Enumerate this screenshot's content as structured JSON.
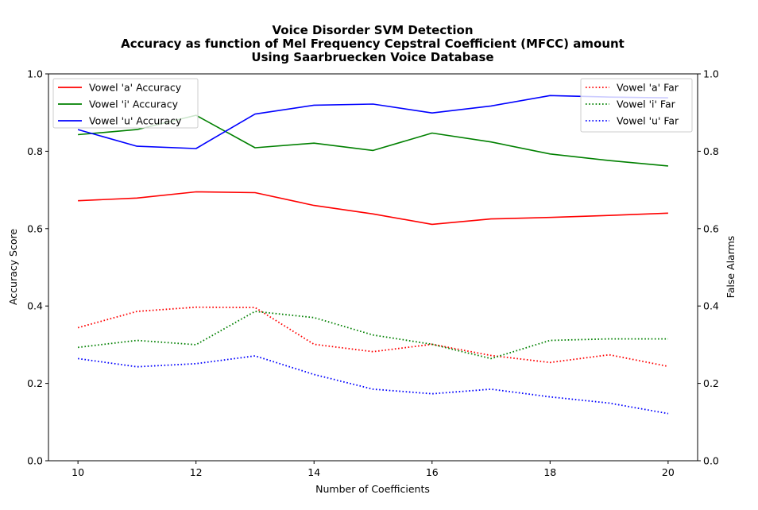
{
  "chart_data": {
    "type": "line",
    "title_lines": [
      "Voice Disorder SVM Detection",
      "Accuracy as function of Mel Frequency Cepstral Coefficient (MFCC) amount",
      "Using Saarbruecken Voice Database"
    ],
    "xlabel": "Number of Coefficients",
    "ylabel_left": "Accuracy Score",
    "ylabel_right": "False Alarms",
    "x": [
      10,
      11,
      12,
      13,
      14,
      15,
      16,
      17,
      18,
      19,
      20
    ],
    "xlim": [
      9.5,
      20.5
    ],
    "ylim_left": [
      0,
      1.0
    ],
    "ylim_right": [
      0,
      1.0
    ],
    "x_ticks": [
      10,
      12,
      14,
      16,
      18,
      20
    ],
    "y_ticks_left": [
      "0.0",
      "0.2",
      "0.4",
      "0.6",
      "0.8",
      "1.0"
    ],
    "y_ticks_right": [
      "0.0",
      "0.2",
      "0.4",
      "0.6",
      "0.8",
      "1.0"
    ],
    "legend_left_position": "upper-left",
    "legend_right_position": "upper-right",
    "grid": false,
    "series_left": [
      {
        "name": "Vowel 'a' Accuracy",
        "color": "#ff0000",
        "style": "solid",
        "values": [
          0.672,
          0.679,
          0.695,
          0.693,
          0.66,
          0.638,
          0.611,
          0.625,
          0.629,
          0.634,
          0.64
        ]
      },
      {
        "name": "Vowel 'i' Accuracy",
        "color": "#008000",
        "style": "solid",
        "values": [
          0.843,
          0.856,
          0.893,
          0.809,
          0.821,
          0.802,
          0.847,
          0.824,
          0.793,
          0.776,
          0.762
        ]
      },
      {
        "name": "Vowel 'u' Accuracy",
        "color": "#0000ff",
        "style": "solid",
        "values": [
          0.856,
          0.813,
          0.807,
          0.896,
          0.919,
          0.922,
          0.899,
          0.917,
          0.944,
          0.94,
          0.938
        ]
      }
    ],
    "series_right": [
      {
        "name": "Vowel 'a' Far",
        "color": "#ff0000",
        "style": "dotted",
        "values": [
          0.344,
          0.386,
          0.397,
          0.396,
          0.301,
          0.282,
          0.301,
          0.272,
          0.254,
          0.274,
          0.244
        ]
      },
      {
        "name": "Vowel 'i' Far",
        "color": "#008000",
        "style": "dotted",
        "values": [
          0.293,
          0.311,
          0.3,
          0.386,
          0.37,
          0.325,
          0.301,
          0.264,
          0.311,
          0.315,
          0.315
        ]
      },
      {
        "name": "Vowel 'u' Far",
        "color": "#0000ff",
        "style": "dotted",
        "values": [
          0.264,
          0.243,
          0.251,
          0.271,
          0.223,
          0.185,
          0.173,
          0.185,
          0.165,
          0.149,
          0.122
        ]
      }
    ]
  }
}
